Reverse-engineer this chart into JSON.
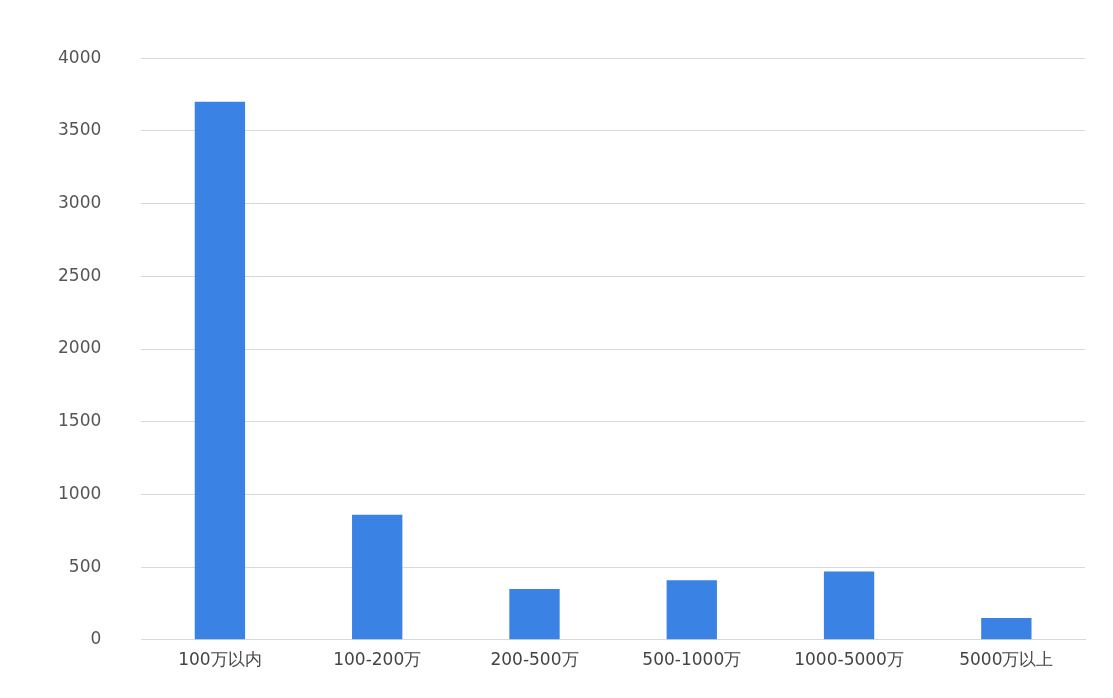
{
  "chart_data": {
    "type": "bar",
    "categories": [
      "100万以内",
      "100-200万",
      "200-500万",
      "500-1000万",
      "1000-5000万",
      "5000万以上"
    ],
    "values": [
      3700,
      860,
      350,
      410,
      470,
      150
    ],
    "color": "#3a82e4",
    "ylim": [
      0,
      4000
    ],
    "yticks": [
      0,
      500,
      1000,
      1500,
      2000,
      2500,
      3000,
      3500,
      4000
    ],
    "grid": "y",
    "legend": false
  }
}
